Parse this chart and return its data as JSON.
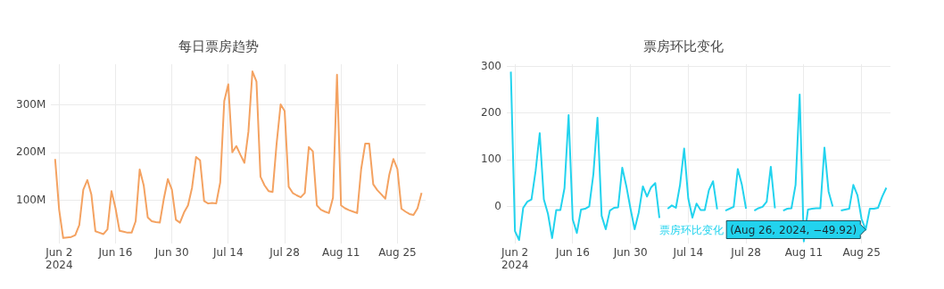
{
  "chart_data": [
    {
      "type": "line",
      "title": "每日票房趋势",
      "x": [
        "2024-06-01",
        "2024-06-02",
        "2024-06-03",
        "2024-06-04",
        "2024-06-05",
        "2024-06-06",
        "2024-06-07",
        "2024-06-08",
        "2024-06-09",
        "2024-06-10",
        "2024-06-11",
        "2024-06-12",
        "2024-06-13",
        "2024-06-14",
        "2024-06-15",
        "2024-06-16",
        "2024-06-17",
        "2024-06-18",
        "2024-06-19",
        "2024-06-20",
        "2024-06-21",
        "2024-06-22",
        "2024-06-23",
        "2024-06-24",
        "2024-06-25",
        "2024-06-26",
        "2024-06-27",
        "2024-06-28",
        "2024-06-29",
        "2024-06-30",
        "2024-07-01",
        "2024-07-02",
        "2024-07-03",
        "2024-07-04",
        "2024-07-05",
        "2024-07-06",
        "2024-07-07",
        "2024-07-08",
        "2024-07-09",
        "2024-07-10",
        "2024-07-11",
        "2024-07-12",
        "2024-07-13",
        "2024-07-14",
        "2024-07-15",
        "2024-07-16",
        "2024-07-17",
        "2024-07-18",
        "2024-07-19",
        "2024-07-20",
        "2024-07-21",
        "2024-07-22",
        "2024-07-23",
        "2024-07-24",
        "2024-07-25",
        "2024-07-26",
        "2024-07-27",
        "2024-07-28",
        "2024-07-29",
        "2024-07-30",
        "2024-07-31",
        "2024-08-01",
        "2024-08-02",
        "2024-08-03",
        "2024-08-04",
        "2024-08-05",
        "2024-08-06",
        "2024-08-07",
        "2024-08-08",
        "2024-08-09",
        "2024-08-10",
        "2024-08-11",
        "2024-08-12",
        "2024-08-13",
        "2024-08-14",
        "2024-08-15",
        "2024-08-16",
        "2024-08-17",
        "2024-08-18",
        "2024-08-19",
        "2024-08-20",
        "2024-08-21",
        "2024-08-22",
        "2024-08-23",
        "2024-08-24",
        "2024-08-25",
        "2024-08-26",
        "2024-08-27",
        "2024-08-28",
        "2024-08-29",
        "2024-08-30",
        "2024-08-31"
      ],
      "series": [
        {
          "color": "#f4a261",
          "values": [
            187,
            81,
            22,
            23,
            24,
            28,
            49,
            123,
            143,
            113,
            36,
            33,
            30,
            40,
            120,
            84,
            37,
            35,
            33,
            33,
            57,
            165,
            132,
            65,
            57,
            55,
            54,
            104,
            145,
            123,
            60,
            54,
            75,
            90,
            127,
            191,
            184,
            99,
            94,
            95,
            94,
            138,
            308,
            343,
            201,
            214,
            196,
            179,
            244,
            370,
            349,
            150,
            132,
            120,
            118,
            219,
            301,
            287,
            129,
            116,
            111,
            107,
            116,
            212,
            203,
            90,
            81,
            77,
            74,
            106,
            363,
            90,
            84,
            80,
            77,
            74,
            166,
            219,
            219,
            134,
            122,
            113,
            104,
            155,
            187,
            166,
            83,
            77,
            72,
            70,
            84,
            116
          ]
        }
      ],
      "xlim": [
        "2024-05-31",
        "2024-09-01"
      ],
      "xticks": [
        {
          "value": "2024-06-02",
          "label": "Jun 2\n2024"
        },
        {
          "value": "2024-06-16",
          "label": "Jun 16"
        },
        {
          "value": "2024-06-30",
          "label": "Jun 30"
        },
        {
          "value": "2024-07-14",
          "label": "Jul 14"
        },
        {
          "value": "2024-07-28",
          "label": "Jul 28"
        },
        {
          "value": "2024-08-11",
          "label": "Aug 11"
        },
        {
          "value": "2024-08-25",
          "label": "Aug 25"
        }
      ],
      "ylim": [
        10,
        385
      ],
      "yticks": [
        {
          "value": 100,
          "label": "100M"
        },
        {
          "value": 200,
          "label": "200M"
        },
        {
          "value": 300,
          "label": "300M"
        }
      ],
      "grid": true,
      "legend": false,
      "marker": "none",
      "line_style": "solid"
    },
    {
      "type": "line",
      "title": "票房环比变化",
      "x": [
        "2024-06-01",
        "2024-06-02",
        "2024-06-03",
        "2024-06-04",
        "2024-06-05",
        "2024-06-06",
        "2024-06-07",
        "2024-06-08",
        "2024-06-09",
        "2024-06-10",
        "2024-06-11",
        "2024-06-12",
        "2024-06-13",
        "2024-06-14",
        "2024-06-15",
        "2024-06-16",
        "2024-06-17",
        "2024-06-18",
        "2024-06-19",
        "2024-06-20",
        "2024-06-21",
        "2024-06-22",
        "2024-06-23",
        "2024-06-24",
        "2024-06-25",
        "2024-06-26",
        "2024-06-27",
        "2024-06-28",
        "2024-06-29",
        "2024-06-30",
        "2024-07-01",
        "2024-07-02",
        "2024-07-03",
        "2024-07-04",
        "2024-07-05",
        "2024-07-06",
        "2024-07-07",
        "2024-07-08",
        "2024-07-09",
        "2024-07-10",
        "2024-07-11",
        "2024-07-12",
        "2024-07-13",
        "2024-07-14",
        "2024-07-15",
        "2024-07-16",
        "2024-07-17",
        "2024-07-18",
        "2024-07-19",
        "2024-07-20",
        "2024-07-21",
        "2024-07-22",
        "2024-07-23",
        "2024-07-24",
        "2024-07-25",
        "2024-07-26",
        "2024-07-27",
        "2024-07-28",
        "2024-07-29",
        "2024-07-30",
        "2024-07-31",
        "2024-08-01",
        "2024-08-02",
        "2024-08-03",
        "2024-08-04",
        "2024-08-05",
        "2024-08-06",
        "2024-08-07",
        "2024-08-08",
        "2024-08-09",
        "2024-08-10",
        "2024-08-11",
        "2024-08-12",
        "2024-08-13",
        "2024-08-14",
        "2024-08-15",
        "2024-08-16",
        "2024-08-17",
        "2024-08-18",
        "2024-08-19",
        "2024-08-20",
        "2024-08-21",
        "2024-08-22",
        "2024-08-23",
        "2024-08-24",
        "2024-08-25",
        "2024-08-26",
        "2024-08-27",
        "2024-08-28",
        "2024-08-29",
        "2024-08-30",
        "2024-08-31"
      ],
      "series": [
        {
          "name": "票房环比变化",
          "color": "#22d3ee",
          "values": [
            289,
            -53,
            -72,
            -3,
            10,
            15,
            76,
            157,
            15,
            -16,
            -68,
            -8,
            -8,
            39,
            196,
            -28,
            -57,
            -7,
            -5,
            0,
            69,
            190,
            -20,
            -49,
            -9,
            -3,
            -2,
            83,
            43,
            -5,
            -49,
            -13,
            43,
            21,
            41,
            50,
            -25,
            null,
            -5,
            2,
            -3,
            46,
            124,
            17,
            -24,
            6,
            -8,
            -8,
            35,
            54,
            -6,
            null,
            -9,
            -5,
            -1,
            80,
            46,
            -5,
            null,
            -9,
            -4,
            -1,
            10,
            85,
            -4,
            null,
            -9,
            -5,
            -4,
            46,
            240,
            -75,
            -7,
            -5,
            -4,
            -4,
            126,
            32,
            0,
            null,
            -9,
            -7,
            -5,
            46,
            24,
            -27,
            -49.92,
            -5,
            -5,
            -3,
            21,
            40
          ]
        }
      ],
      "xlim": [
        "2024-05-31",
        "2024-09-01"
      ],
      "xticks": [
        {
          "value": "2024-06-02",
          "label": "Jun 2\n2024"
        },
        {
          "value": "2024-06-16",
          "label": "Jun 16"
        },
        {
          "value": "2024-06-30",
          "label": "Jun 30"
        },
        {
          "value": "2024-07-14",
          "label": "Jul 14"
        },
        {
          "value": "2024-07-28",
          "label": "Jul 28"
        },
        {
          "value": "2024-08-11",
          "label": "Aug 11"
        },
        {
          "value": "2024-08-25",
          "label": "Aug 25"
        }
      ],
      "ylim": [
        -80,
        305
      ],
      "yticks": [
        0,
        100,
        200,
        300
      ],
      "annotations": [
        {
          "text": "(Aug 26, 2024, −49.92)",
          "x": "2024-08-26",
          "y": -49.92
        }
      ],
      "grid": true,
      "legend": false,
      "marker": "none",
      "line_style": "solid"
    }
  ]
}
